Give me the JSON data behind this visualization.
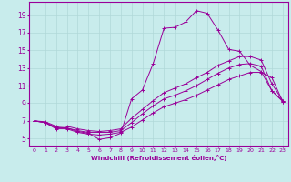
{
  "xlabel": "Windchill (Refroidissement éolien,°C)",
  "x_ticks": [
    0,
    1,
    2,
    3,
    4,
    5,
    6,
    7,
    8,
    9,
    10,
    11,
    12,
    13,
    14,
    15,
    16,
    17,
    18,
    19,
    20,
    21,
    22,
    23
  ],
  "y_ticks": [
    5,
    7,
    9,
    11,
    13,
    15,
    17,
    19
  ],
  "ylim": [
    4.2,
    20.5
  ],
  "xlim": [
    -0.5,
    23.5
  ],
  "bg_color": "#c8ecec",
  "grid_color": "#b0d8d8",
  "line_color": "#990099",
  "lines": [
    [
      7.0,
      6.8,
      6.2,
      6.2,
      5.8,
      5.6,
      4.9,
      5.1,
      5.6,
      9.5,
      10.5,
      13.5,
      17.5,
      17.6,
      18.2,
      19.5,
      19.2,
      17.3,
      15.1,
      14.9,
      13.3,
      12.6,
      10.4,
      9.3
    ],
    [
      7.0,
      6.8,
      6.1,
      6.1,
      5.7,
      5.5,
      5.4,
      5.5,
      5.7,
      6.3,
      7.1,
      7.9,
      8.6,
      9.0,
      9.4,
      9.9,
      10.5,
      11.1,
      11.7,
      12.1,
      12.5,
      12.5,
      11.9,
      9.2
    ],
    [
      7.0,
      6.8,
      6.3,
      6.2,
      5.9,
      5.7,
      5.7,
      5.7,
      5.9,
      6.8,
      7.8,
      8.7,
      9.5,
      9.9,
      10.4,
      11.0,
      11.7,
      12.4,
      13.0,
      13.4,
      13.5,
      13.2,
      10.4,
      9.2
    ],
    [
      7.0,
      6.9,
      6.4,
      6.4,
      6.1,
      5.9,
      5.8,
      5.9,
      6.1,
      7.3,
      8.3,
      9.3,
      10.2,
      10.7,
      11.2,
      11.9,
      12.5,
      13.3,
      13.8,
      14.3,
      14.3,
      13.9,
      11.2,
      9.3
    ]
  ]
}
